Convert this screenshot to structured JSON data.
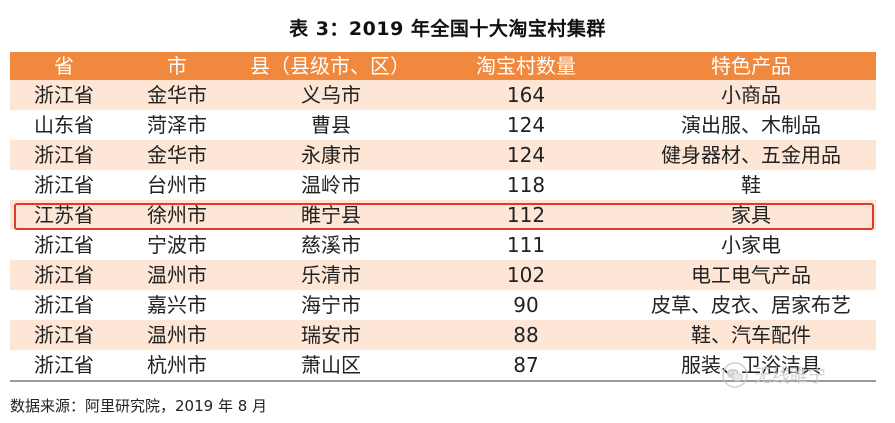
{
  "title": "表 3：2019 年全国十大淘宝村集群",
  "table": {
    "headers": [
      "省",
      "市",
      "县（县级市、区）",
      "淘宝村数量",
      "特色产品"
    ],
    "rows": [
      [
        "浙江省",
        "金华市",
        "义乌市",
        "164",
        "小商品"
      ],
      [
        "山东省",
        "菏泽市",
        "曹县",
        "124",
        "演出服、木制品"
      ],
      [
        "浙江省",
        "金华市",
        "永康市",
        "124",
        "健身器材、五金用品"
      ],
      [
        "浙江省",
        "台州市",
        "温岭市",
        "118",
        "鞋"
      ],
      [
        "江苏省",
        "徐州市",
        "睢宁县",
        "112",
        "家具"
      ],
      [
        "浙江省",
        "宁波市",
        "慈溪市",
        "111",
        "小家电"
      ],
      [
        "浙江省",
        "温州市",
        "乐清市",
        "102",
        "电工电气产品"
      ],
      [
        "浙江省",
        "嘉兴市",
        "海宁市",
        "90",
        "皮草、皮衣、居家布艺"
      ],
      [
        "浙江省",
        "温州市",
        "瑞安市",
        "88",
        "鞋、汽车配件"
      ],
      [
        "浙江省",
        "杭州市",
        "萧山区",
        "87",
        "服装、卫浴洁具"
      ]
    ],
    "highlighted_row": 4
  },
  "source": "数据来源：阿里研究院，2019 年 8 月",
  "watermark": {
    "text": "无线睢宁",
    "icon": "wechat-logo-icon"
  },
  "colors": {
    "header_bg": "#f0883e",
    "odd_row_bg": "#fde6d6",
    "highlight_border": "#e03a2e"
  }
}
